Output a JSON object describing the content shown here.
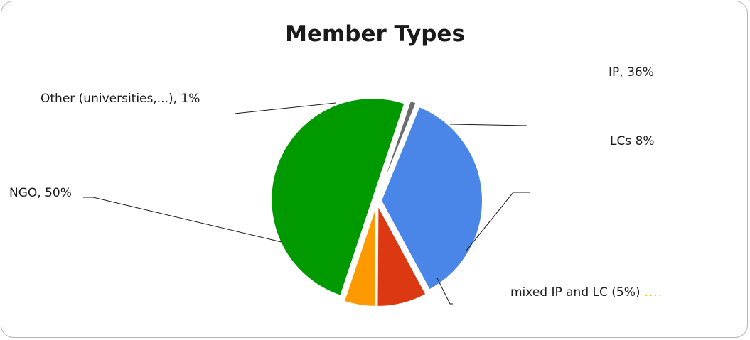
{
  "chart_data": {
    "type": "pie",
    "title": "Member Types",
    "slices": [
      {
        "label": "IP",
        "value": 36,
        "color": "#4a86e8",
        "text": "IP, 36%"
      },
      {
        "label": "LCs",
        "value": 8,
        "color": "#dc3912",
        "text": "LCs  8%"
      },
      {
        "label": "mixed IP and LC",
        "value": 5,
        "color": "#ff9900",
        "text": "mixed IP and LC (5%)"
      },
      {
        "label": "NGO",
        "value": 50,
        "color": "#009900",
        "text": "NGO, 50%"
      },
      {
        "label": "Other (universities,...)",
        "value": 1,
        "color": "#6b6b6b",
        "text": "Other (universities,...), 1%"
      }
    ],
    "mixed_suffix": "....",
    "legend": "none"
  }
}
